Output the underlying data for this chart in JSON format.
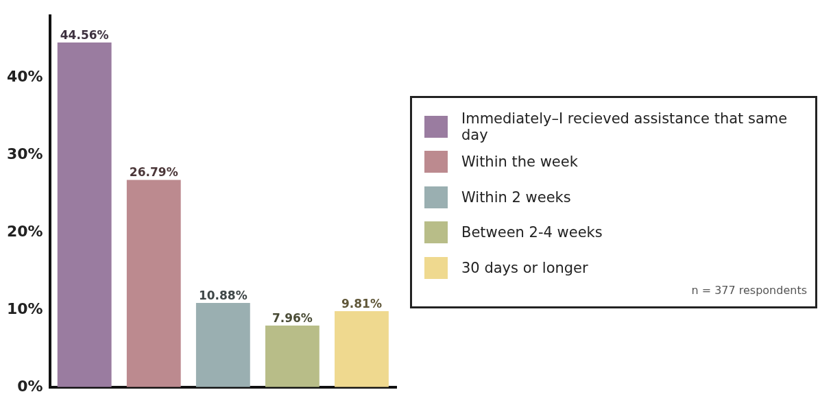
{
  "chart_data": {
    "type": "bar",
    "categories": [
      null,
      null,
      null,
      null,
      null
    ],
    "series": [
      {
        "name": "Immediately–I recieved assistance that same day",
        "color": "#9a7ca0",
        "values": [
          44.56,
          null,
          null,
          null,
          null
        ],
        "value_labels": [
          "44.56%",
          null,
          null,
          null,
          null
        ]
      },
      {
        "name": "Within the week",
        "color": "#bc8a8f",
        "values": [
          null,
          26.79,
          null,
          null,
          null
        ],
        "value_labels": [
          null,
          "26.79%",
          null,
          null,
          null
        ]
      },
      {
        "name": "Within 2 weeks",
        "color": "#9aafb1",
        "values": [
          null,
          null,
          10.88,
          null,
          null
        ],
        "value_labels": [
          null,
          null,
          "10.88%",
          null,
          null
        ]
      },
      {
        "name": "Between 2-4 weeks",
        "color": "#b8bd88",
        "values": [
          null,
          null,
          null,
          7.96,
          null
        ],
        "value_labels": [
          null,
          null,
          null,
          "7.96%",
          null
        ]
      },
      {
        "name": "30 days or longer",
        "color": "#efd98f",
        "values": [
          null,
          null,
          null,
          null,
          9.81
        ],
        "value_labels": [
          null,
          null,
          null,
          null,
          "9.81%"
        ]
      }
    ],
    "ylim": [
      0,
      48
    ],
    "yticks": [
      {
        "value": 0,
        "label": "0%"
      },
      {
        "value": 10,
        "label": "10%"
      },
      {
        "value": 20,
        "label": "20%"
      },
      {
        "value": 30,
        "label": "30%"
      },
      {
        "value": 40,
        "label": "40%"
      }
    ],
    "grid": false,
    "legend": "right",
    "tick_labels": "y",
    "annotations": [
      "n = 377 respondents"
    ]
  }
}
